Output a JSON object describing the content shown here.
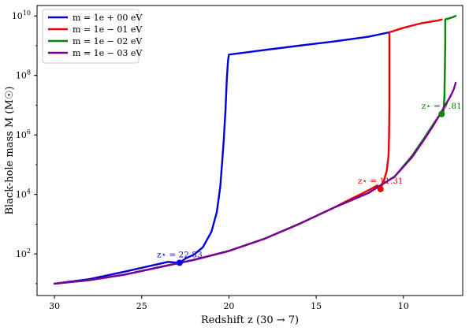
{
  "chart_data": {
    "type": "line",
    "xlabel": "Redshift z (30 → 7)",
    "ylabel": "Black-hole mass M (M☉)",
    "x_ticks": [
      "30",
      "25",
      "20",
      "15",
      "10"
    ],
    "y_ticks": [
      {
        "base": "10",
        "exp": "2"
      },
      {
        "base": "10",
        "exp": "4"
      },
      {
        "base": "10",
        "exp": "6"
      },
      {
        "base": "10",
        "exp": "8"
      },
      {
        "base": "10",
        "exp": "10"
      }
    ],
    "xlim": [
      31,
      6.6
    ],
    "ylim_log10": [
      0.6,
      10.35
    ],
    "y_scale": "log",
    "legend_position": "upper-left",
    "series": [
      {
        "name": "m = 1e + 00 eV",
        "color": "#0000dd",
        "points": [
          [
            30,
            1.0
          ],
          [
            28,
            1.15
          ],
          [
            26,
            1.4
          ],
          [
            24.5,
            1.6
          ],
          [
            23.5,
            1.73
          ],
          [
            22.83,
            1.7
          ],
          [
            22.5,
            1.84
          ],
          [
            22,
            1.98
          ],
          [
            21.5,
            2.22
          ],
          [
            21.0,
            2.75
          ],
          [
            20.7,
            3.4
          ],
          [
            20.5,
            4.25
          ],
          [
            20.4,
            5.0
          ],
          [
            20.3,
            5.8
          ],
          [
            20.2,
            6.8
          ],
          [
            20.12,
            7.9
          ],
          [
            20.05,
            8.5
          ],
          [
            20.0,
            8.7
          ],
          [
            18,
            8.85
          ],
          [
            16,
            9.0
          ],
          [
            14,
            9.14
          ],
          [
            12,
            9.3
          ],
          [
            10.8,
            9.45
          ]
        ]
      },
      {
        "name": "m = 1e − 01 eV",
        "color": "#ee0000",
        "points": [
          [
            30,
            1.0
          ],
          [
            28,
            1.12
          ],
          [
            26,
            1.3
          ],
          [
            24,
            1.55
          ],
          [
            22,
            1.8
          ],
          [
            20,
            2.1
          ],
          [
            18,
            2.5
          ],
          [
            16,
            3.0
          ],
          [
            14,
            3.55
          ],
          [
            13,
            3.85
          ],
          [
            12.3,
            4.05
          ],
          [
            11.8,
            4.2
          ],
          [
            11.5,
            4.3
          ],
          [
            11.31,
            4.18
          ],
          [
            11.1,
            4.5
          ],
          [
            10.95,
            4.8
          ],
          [
            10.85,
            5.3
          ],
          [
            10.82,
            6.0
          ],
          [
            10.8,
            7.0
          ],
          [
            10.8,
            8.2
          ],
          [
            10.8,
            9.45
          ],
          [
            10,
            9.6
          ],
          [
            9,
            9.75
          ],
          [
            8,
            9.85
          ],
          [
            7.8,
            9.88
          ]
        ]
      },
      {
        "name": "m = 1e − 02 eV",
        "color": "#008800",
        "points": [
          [
            30,
            1.0
          ],
          [
            28,
            1.12
          ],
          [
            26,
            1.3
          ],
          [
            24,
            1.55
          ],
          [
            22,
            1.8
          ],
          [
            20,
            2.1
          ],
          [
            18,
            2.5
          ],
          [
            16,
            3.0
          ],
          [
            14,
            3.55
          ],
          [
            12,
            4.05
          ],
          [
            10.5,
            4.6
          ],
          [
            9.5,
            5.3
          ],
          [
            8.8,
            5.9
          ],
          [
            8.3,
            6.35
          ],
          [
            7.9,
            6.68
          ],
          [
            7.81,
            6.7
          ],
          [
            7.7,
            6.8
          ],
          [
            7.65,
            7.3
          ],
          [
            7.62,
            8.2
          ],
          [
            7.6,
            9.2
          ],
          [
            7.6,
            9.88
          ],
          [
            7.2,
            9.95
          ],
          [
            7.0,
            10.0
          ]
        ]
      },
      {
        "name": "m = 1e − 03 eV",
        "color": "#7b0099",
        "points": [
          [
            30,
            1.0
          ],
          [
            28,
            1.12
          ],
          [
            26,
            1.3
          ],
          [
            24,
            1.55
          ],
          [
            22,
            1.8
          ],
          [
            20,
            2.1
          ],
          [
            18,
            2.5
          ],
          [
            16,
            3.0
          ],
          [
            14,
            3.55
          ],
          [
            12,
            4.05
          ],
          [
            10.5,
            4.6
          ],
          [
            9.5,
            5.25
          ],
          [
            8.8,
            5.85
          ],
          [
            8.3,
            6.3
          ],
          [
            7.9,
            6.7
          ],
          [
            7.6,
            7.0
          ],
          [
            7.3,
            7.3
          ],
          [
            7.1,
            7.55
          ],
          [
            7.0,
            7.75
          ]
        ]
      }
    ],
    "markers": [
      {
        "label": "z⋆ = 22.83",
        "x": 22.83,
        "log10_y": 1.7,
        "color": "#0000dd"
      },
      {
        "label": "z⋆ = 11.31",
        "x": 11.31,
        "log10_y": 4.18,
        "color": "#ee0000"
      },
      {
        "label": "z⋆ = 7.81",
        "x": 7.81,
        "log10_y": 6.7,
        "color": "#008800"
      }
    ]
  }
}
